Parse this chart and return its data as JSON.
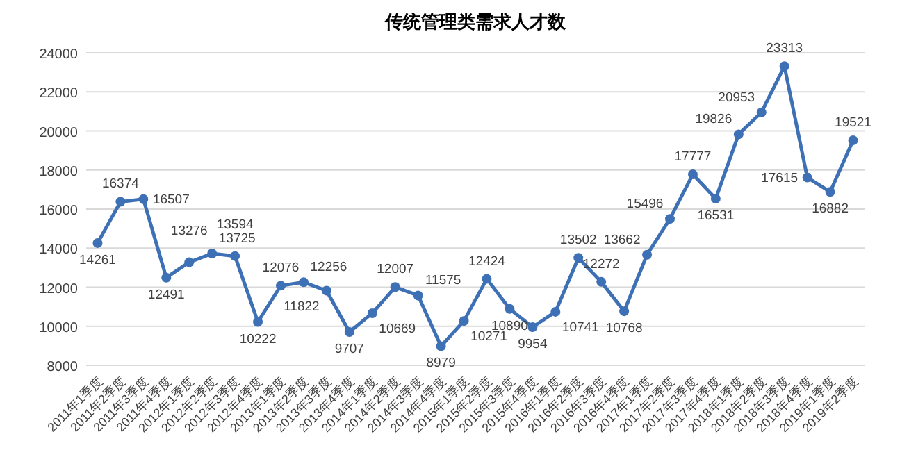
{
  "chart_data": {
    "type": "line",
    "title": "传统管理类需求人才数",
    "categories": [
      "2011年1季度",
      "2011年2季度",
      "2011年3季度",
      "2011年4季度",
      "2012年1季度",
      "2012年2季度",
      "2012年3季度",
      "2012年4季度",
      "2013年1季度",
      "2013年2季度",
      "2013年3季度",
      "2013年4季度",
      "2014年1季度",
      "2014年2季度",
      "2014年3季度",
      "2014年4季度",
      "2015年1季度",
      "2015年2季度",
      "2015年3季度",
      "2015年4季度",
      "2016年1季度",
      "2016年2季度",
      "2016年3季度",
      "2016年4季度",
      "2017年1季度",
      "2017年2季度",
      "2017年3季度",
      "2017年4季度",
      "2018年1季度",
      "2018年2季度",
      "2018年3季度",
      "2018年4季度",
      "2019年1季度",
      "2019年2季度"
    ],
    "series": [
      {
        "color": "#3e70b5",
        "values": [
          14261,
          16374,
          16507,
          12491,
          13276,
          13725,
          13594,
          10222,
          12076,
          12256,
          11822,
          9707,
          10669,
          12007,
          11575,
          8979,
          10271,
          12424,
          10890,
          9954,
          10741,
          13502,
          12272,
          10768,
          13662,
          15496,
          17777,
          16531,
          19826,
          20953,
          23313,
          17615,
          16882,
          19521
        ]
      }
    ],
    "ylim": [
      8000,
      24000
    ],
    "yticks": [
      8000,
      10000,
      12000,
      14000,
      16000,
      18000,
      20000,
      22000,
      24000
    ],
    "grid": "y",
    "marker": "circle",
    "line_style": "solid",
    "data_labels": true
  }
}
